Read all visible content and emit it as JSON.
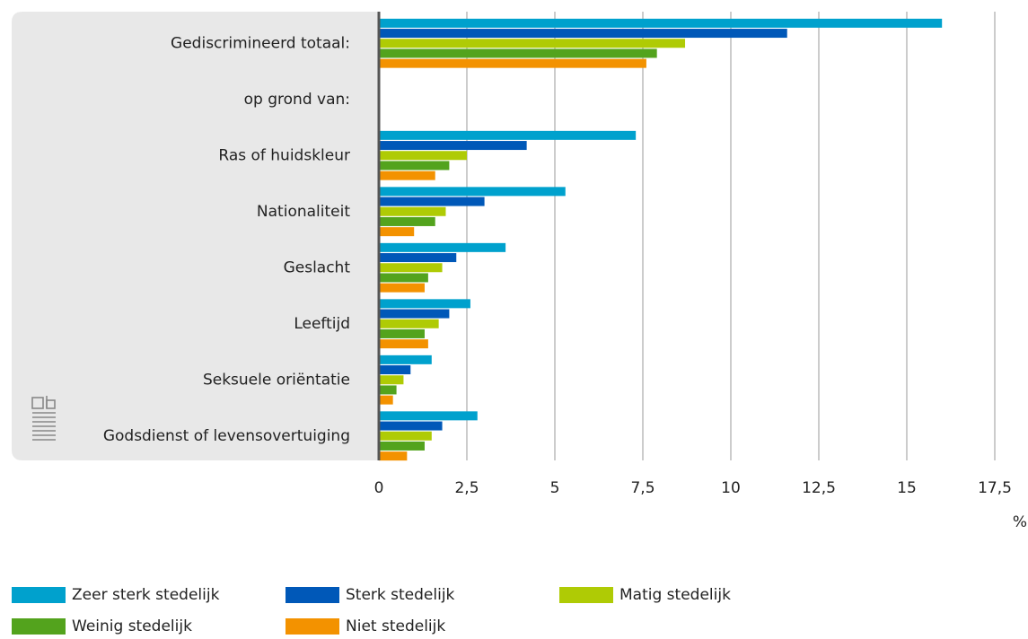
{
  "chart_data": {
    "type": "bar",
    "orientation": "horizontal",
    "categories": [
      "Gediscrimineerd totaal:",
      "op grond van:",
      "Ras of huidskleur",
      "Nationaliteit",
      "Geslacht",
      "Leeftijd",
      "Seksuele oriëntatie",
      "Godsdienst of levensovertuiging"
    ],
    "series": [
      {
        "name": "Zeer sterk stedelijk",
        "color": "#00a1cd",
        "values": [
          16.0,
          null,
          7.3,
          5.3,
          3.6,
          2.6,
          1.5,
          2.8
        ]
      },
      {
        "name": "Sterk stedelijk",
        "color": "#0058b8",
        "values": [
          11.6,
          null,
          4.2,
          3.0,
          2.2,
          2.0,
          0.9,
          1.8
        ]
      },
      {
        "name": "Matig stedelijk",
        "color": "#afcb05",
        "values": [
          8.7,
          null,
          2.5,
          1.9,
          1.8,
          1.7,
          0.7,
          1.5
        ]
      },
      {
        "name": "Weinig stedelijk",
        "color": "#53a31d",
        "values": [
          7.9,
          null,
          2.0,
          1.6,
          1.4,
          1.3,
          0.5,
          1.3
        ]
      },
      {
        "name": "Niet stedelijk",
        "color": "#f39200",
        "values": [
          7.6,
          null,
          1.6,
          1.0,
          1.3,
          1.4,
          0.4,
          0.8
        ]
      }
    ],
    "xlim": [
      0,
      17.5
    ],
    "xticks": [
      0,
      {
        "value": 2.5,
        "label": "2,5"
      },
      5,
      {
        "value": 7.5,
        "label": "7,5"
      },
      10,
      {
        "value": 12.5,
        "label": "12,5"
      },
      15,
      {
        "value": 17.5,
        "label": "17,5"
      }
    ],
    "x_unit": "%",
    "grid": true
  }
}
